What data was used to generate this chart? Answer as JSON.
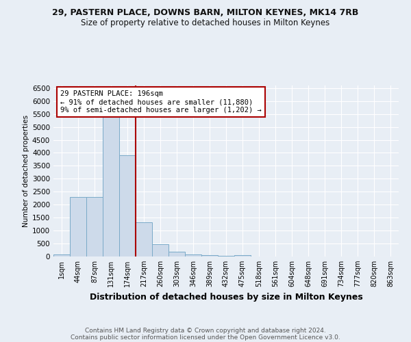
{
  "title1": "29, PASTERN PLACE, DOWNS BARN, MILTON KEYNES, MK14 7RB",
  "title2": "Size of property relative to detached houses in Milton Keynes",
  "xlabel": "Distribution of detached houses by size in Milton Keynes",
  "ylabel": "Number of detached properties",
  "bin_labels": [
    "1sqm",
    "44sqm",
    "87sqm",
    "131sqm",
    "174sqm",
    "217sqm",
    "260sqm",
    "303sqm",
    "346sqm",
    "389sqm",
    "432sqm",
    "475sqm",
    "518sqm",
    "561sqm",
    "604sqm",
    "648sqm",
    "691sqm",
    "734sqm",
    "777sqm",
    "820sqm",
    "863sqm"
  ],
  "bin_values": [
    80,
    2300,
    2300,
    5400,
    3900,
    1310,
    480,
    185,
    85,
    55,
    30,
    55,
    0,
    0,
    0,
    0,
    0,
    0,
    0,
    0,
    0
  ],
  "bar_color": "#cddaea",
  "bar_edge_color": "#7aaac8",
  "property_line_x": 4.5,
  "property_line_color": "#aa0000",
  "annotation_text": "29 PASTERN PLACE: 196sqm\n← 91% of detached houses are smaller (11,880)\n9% of semi-detached houses are larger (1,202) →",
  "annotation_box_edgecolor": "#aa0000",
  "ylim": [
    0,
    6600
  ],
  "yticks": [
    0,
    500,
    1000,
    1500,
    2000,
    2500,
    3000,
    3500,
    4000,
    4500,
    5000,
    5500,
    6000,
    6500
  ],
  "footer1": "Contains HM Land Registry data © Crown copyright and database right 2024.",
  "footer2": "Contains public sector information licensed under the Open Government Licence v3.0.",
  "bg_color": "#e8eef5",
  "grid_color": "#ffffff"
}
